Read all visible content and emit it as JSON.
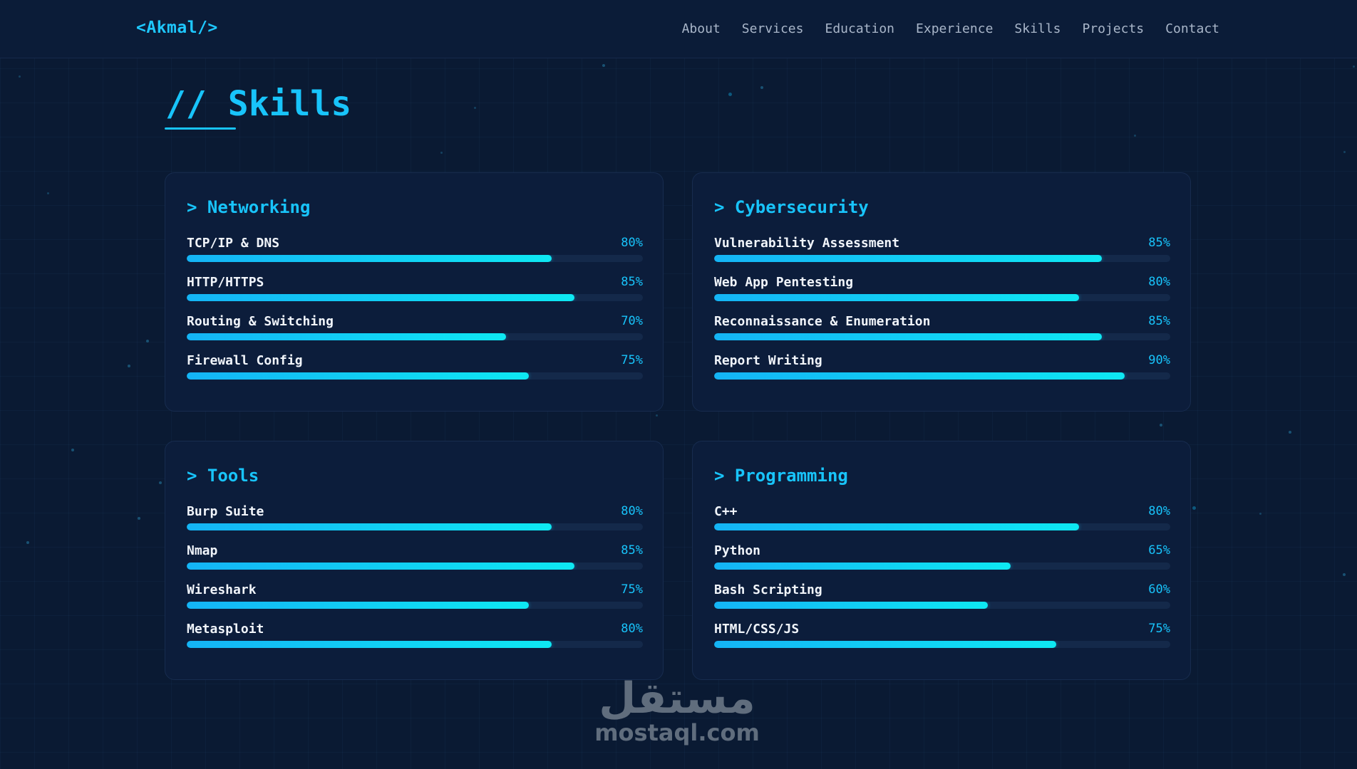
{
  "header": {
    "logo": "<Akmal/>",
    "nav": [
      "About",
      "Services",
      "Education",
      "Experience",
      "Skills",
      "Projects",
      "Contact"
    ]
  },
  "section": {
    "prefix": "//",
    "title": "Skills"
  },
  "cards": [
    {
      "title": "> Networking",
      "skills": [
        {
          "name": "TCP/IP & DNS",
          "percent": "80%",
          "level": 80
        },
        {
          "name": "HTTP/HTTPS",
          "percent": "85%",
          "level": 85
        },
        {
          "name": "Routing & Switching",
          "percent": "70%",
          "level": 70
        },
        {
          "name": "Firewall Config",
          "percent": "75%",
          "level": 75
        }
      ]
    },
    {
      "title": "> Cybersecurity",
      "skills": [
        {
          "name": "Vulnerability Assessment",
          "percent": "85%",
          "level": 85
        },
        {
          "name": "Web App Pentesting",
          "percent": "80%",
          "level": 80
        },
        {
          "name": "Reconnaissance & Enumeration",
          "percent": "85%",
          "level": 85
        },
        {
          "name": "Report Writing",
          "percent": "90%",
          "level": 90
        }
      ]
    },
    {
      "title": "> Tools",
      "skills": [
        {
          "name": "Burp Suite",
          "percent": "80%",
          "level": 80
        },
        {
          "name": "Nmap",
          "percent": "85%",
          "level": 85
        },
        {
          "name": "Wireshark",
          "percent": "75%",
          "level": 75
        },
        {
          "name": "Metasploit",
          "percent": "80%",
          "level": 80
        }
      ]
    },
    {
      "title": "> Programming",
      "skills": [
        {
          "name": "C++",
          "percent": "80%",
          "level": 80
        },
        {
          "name": "Python",
          "percent": "65%",
          "level": 65
        },
        {
          "name": "Bash Scripting",
          "percent": "60%",
          "level": 60
        },
        {
          "name": "HTML/CSS/JS",
          "percent": "75%",
          "level": 75
        }
      ]
    }
  ],
  "watermark": {
    "arabic": "مستقل",
    "latin": "mostaql.com"
  },
  "colors": {
    "background": "#0a1a33",
    "card": "#0c1d3b",
    "accent": "#18c4fb",
    "bar_track": "#14294a"
  }
}
